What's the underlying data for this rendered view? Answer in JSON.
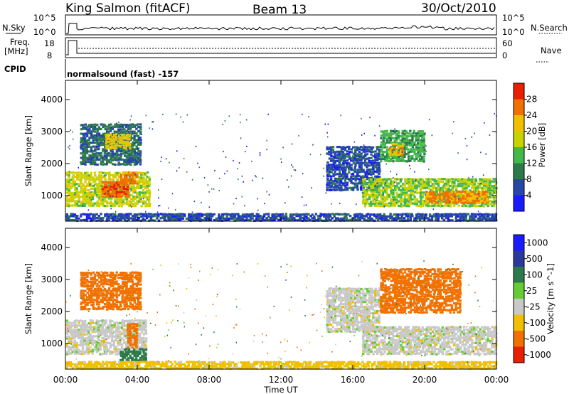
{
  "header": {
    "station": "King Salmon (fitACF)",
    "beam": "Beam 13",
    "date": "30/Oct/2010"
  },
  "top_panels": {
    "nsky_label": "N.Sky",
    "nsearch_label": "N.Search",
    "nsky_ticks": [
      "10^5",
      "10^0"
    ],
    "nsearch_ticks": [
      "10^5",
      "10^0"
    ],
    "freq_label_line1": "Freq.",
    "freq_label_line2": "[MHz]",
    "freq_ticks": [
      "18",
      "8"
    ],
    "nave_label": "Nave",
    "nave_ticks": [
      "60",
      "0"
    ],
    "cpid_label": "CPID",
    "cpid_text": "normalsound (fast) -157"
  },
  "colors": {
    "power_scale": [
      "#1a1aff",
      "#2646a8",
      "#2c7a4a",
      "#44b84a",
      "#c8d200",
      "#f0c000",
      "#f07000",
      "#e82000"
    ],
    "velocity_scale": [
      "#1a1aff",
      "#2a3a9a",
      "#2c7a4a",
      "#66cc33",
      "#c8c8c8",
      "#f0c000",
      "#f07000",
      "#e82000"
    ]
  },
  "chart_data": [
    {
      "type": "heatmap",
      "title": "",
      "xlabel": "Time UT",
      "ylabel": "Slant Range [km]",
      "x_ticks": [
        "00:00",
        "04:00",
        "08:00",
        "12:00",
        "16:00",
        "20:00",
        "00:00"
      ],
      "y_ticks": [
        "1000",
        "2000",
        "3000",
        "4000"
      ],
      "xlim_hours": [
        0,
        24
      ],
      "ylim_km": [
        200,
        4600
      ],
      "colorbar_label": "Power [dB]",
      "colorbar_ticks": [
        "4",
        "8",
        "12",
        "16",
        "20",
        "24",
        "28"
      ],
      "colorbar_range": [
        0,
        32
      ],
      "regions": [
        {
          "t0": 0.0,
          "t1": 4.7,
          "r0": 700,
          "r1": 1800,
          "level": 18
        },
        {
          "t0": 2.0,
          "t1": 3.5,
          "r0": 1000,
          "r1": 1500,
          "level": 27
        },
        {
          "t0": 3.0,
          "t1": 4.0,
          "r0": 1400,
          "r1": 1800,
          "level": 25
        },
        {
          "t0": 0.8,
          "t1": 4.2,
          "r0": 2000,
          "r1": 3300,
          "level": 9
        },
        {
          "t0": 2.2,
          "t1": 3.6,
          "r0": 2500,
          "r1": 3000,
          "level": 21
        },
        {
          "t0": 14.5,
          "t1": 17.5,
          "r0": 1200,
          "r1": 2600,
          "level": 6
        },
        {
          "t0": 16.5,
          "t1": 24.0,
          "r0": 700,
          "r1": 1600,
          "level": 16
        },
        {
          "t0": 20.0,
          "t1": 23.5,
          "r0": 800,
          "r1": 1200,
          "level": 25
        },
        {
          "t0": 17.5,
          "t1": 20.0,
          "r0": 2100,
          "r1": 3100,
          "level": 13
        },
        {
          "t0": 18.0,
          "t1": 18.8,
          "r0": 2300,
          "r1": 2700,
          "level": 22
        },
        {
          "t0": 0.0,
          "t1": 24.0,
          "r0": 250,
          "r1": 500,
          "level": 6
        }
      ]
    },
    {
      "type": "heatmap",
      "title": "",
      "xlabel": "Time UT",
      "ylabel": "Slant Range [km]",
      "x_ticks": [
        "00:00",
        "04:00",
        "08:00",
        "12:00",
        "16:00",
        "20:00",
        "00:00"
      ],
      "y_ticks": [
        "1000",
        "2000",
        "3000",
        "4000"
      ],
      "xlim_hours": [
        0,
        24
      ],
      "ylim_km": [
        200,
        4600
      ],
      "colorbar_label": "Velocity [m s^-1]",
      "colorbar_ticks": [
        "1000",
        "500",
        "100",
        "25",
        "-25",
        "-100",
        "-500",
        "-1000"
      ],
      "regions": [
        {
          "t0": 0.0,
          "t1": 4.5,
          "r0": 700,
          "r1": 1800,
          "level": 0
        },
        {
          "t0": 3.4,
          "t1": 4.0,
          "r0": 900,
          "r1": 1700,
          "level": -300
        },
        {
          "t0": 3.0,
          "t1": 4.5,
          "r0": 500,
          "r1": 900,
          "level": 150
        },
        {
          "t0": 0.8,
          "t1": 4.2,
          "r0": 2100,
          "r1": 3300,
          "level": -200
        },
        {
          "t0": 14.5,
          "t1": 17.5,
          "r0": 1400,
          "r1": 2800,
          "level": 0
        },
        {
          "t0": 16.5,
          "t1": 24.0,
          "r0": 700,
          "r1": 1600,
          "level": 0
        },
        {
          "t0": 17.5,
          "t1": 22.0,
          "r0": 2000,
          "r1": 3400,
          "level": -150
        },
        {
          "t0": 0.0,
          "t1": 24.0,
          "r0": 250,
          "r1": 500,
          "level": -50
        }
      ]
    }
  ]
}
